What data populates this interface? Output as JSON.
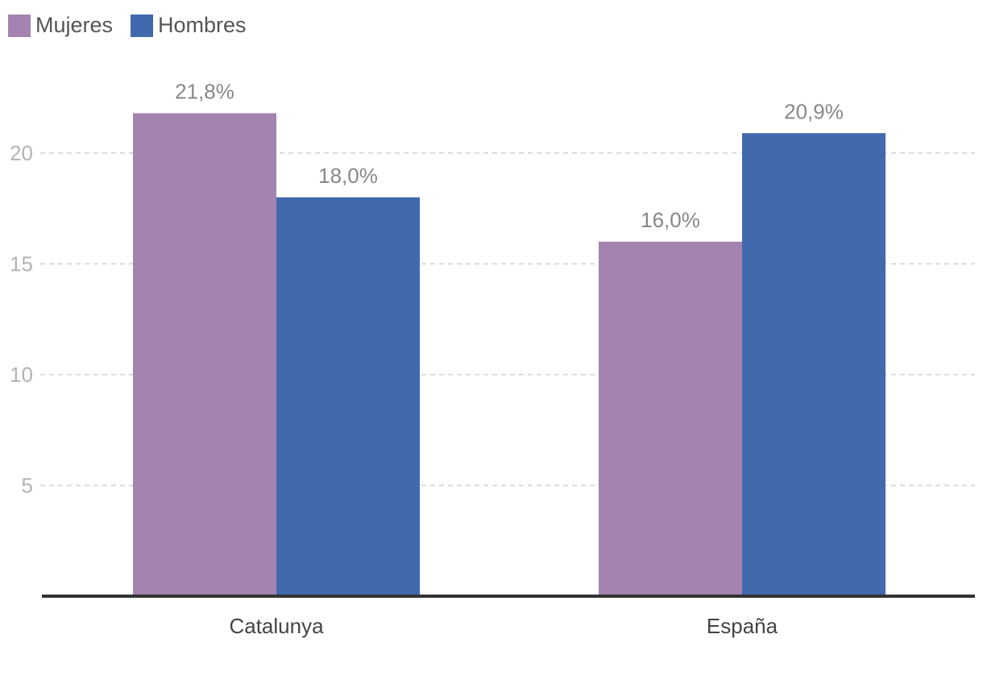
{
  "legend": [
    {
      "label": "Mujeres",
      "color": "#a583b0"
    },
    {
      "label": "Hombres",
      "color": "#4169ad"
    }
  ],
  "chart_data": {
    "type": "bar",
    "title": "",
    "xlabel": "",
    "ylabel": "",
    "categories": [
      "Catalunya",
      "España"
    ],
    "series": [
      {
        "name": "Mujeres",
        "color": "#a583b0",
        "values": [
          21.8,
          16.0
        ],
        "labels": [
          "21,8%",
          "16,0%"
        ]
      },
      {
        "name": "Hombres",
        "color": "#4169ad",
        "values": [
          18.0,
          20.9
        ],
        "labels": [
          "18,0%",
          "20,9%"
        ]
      }
    ],
    "ylim": [
      0,
      25
    ],
    "yticks": [
      5,
      10,
      15,
      20
    ],
    "grid": true,
    "legend_position": "top-left"
  }
}
